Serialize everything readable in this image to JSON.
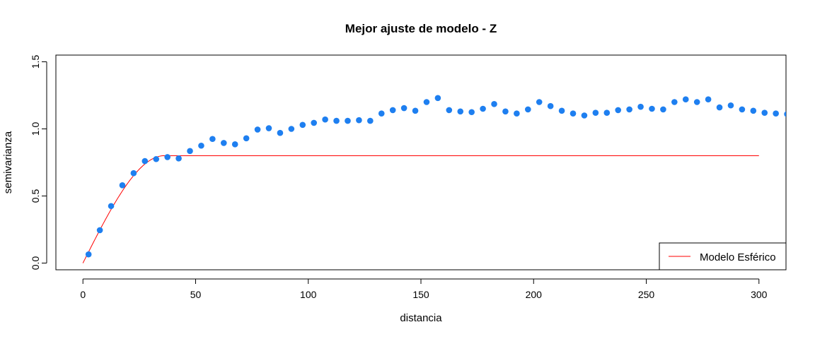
{
  "chart_data": {
    "type": "scatter",
    "title": "Mejor ajuste de modelo - Z",
    "xlabel": "distancia",
    "ylabel": "semivarianza",
    "xlim": [
      -12,
      312
    ],
    "ylim": [
      -0.05,
      1.55
    ],
    "x_ticks": [
      0,
      50,
      100,
      150,
      200,
      250,
      300
    ],
    "y_ticks": [
      0.0,
      0.5,
      1.0,
      1.5
    ],
    "x_tick_labels": [
      "0",
      "50",
      "100",
      "150",
      "200",
      "250",
      "300"
    ],
    "y_tick_labels": [
      "0.0",
      "0.5",
      "1.0",
      "1.5"
    ],
    "grid": false,
    "point_color": "#1e7ff0",
    "line_color": "#ff0000",
    "legend_position": "bottom-right",
    "series": [
      {
        "type": "scatter",
        "x": [
          2.5,
          7.5,
          12.5,
          17.5,
          22.5,
          27.5,
          32.5,
          37.5,
          42.5,
          47.5,
          52.5,
          57.5,
          62.5,
          67.5,
          72.5,
          77.5,
          82.5,
          87.5,
          92.5,
          97.5,
          102.5,
          107.5,
          112.5,
          117.5,
          122.5,
          127.5,
          132.5,
          137.5,
          142.5,
          147.5,
          152.5,
          157.5,
          162.5,
          167.5,
          172.5,
          177.5,
          182.5,
          187.5,
          192.5,
          197.5,
          202.5,
          207.5,
          212.5,
          217.5,
          222.5,
          227.5,
          232.5,
          237.5,
          242.5,
          247.5,
          252.5,
          257.5,
          262.5,
          267.5,
          272.5,
          277.5,
          282.5,
          287.5,
          292.5,
          297.5,
          302.5,
          307.5,
          312.5
        ],
        "y": [
          0.065,
          0.245,
          0.425,
          0.58,
          0.67,
          0.76,
          0.775,
          0.79,
          0.78,
          0.835,
          0.875,
          0.925,
          0.895,
          0.885,
          0.93,
          0.995,
          1.005,
          0.97,
          1.0,
          1.03,
          1.045,
          1.07,
          1.06,
          1.06,
          1.065,
          1.06,
          1.115,
          1.14,
          1.155,
          1.135,
          1.2,
          1.23,
          1.14,
          1.13,
          1.125,
          1.15,
          1.185,
          1.13,
          1.115,
          1.145,
          1.2,
          1.17,
          1.135,
          1.115,
          1.1,
          1.12,
          1.12,
          1.14,
          1.145,
          1.165,
          1.15,
          1.145,
          1.2,
          1.22,
          1.2,
          1.22,
          1.16,
          1.175,
          1.145,
          1.135,
          1.12,
          1.115,
          1.11
        ]
      },
      {
        "type": "line",
        "name": "Modelo Esférico",
        "model": "spherical",
        "nugget": 0,
        "sill": 0.8,
        "range": 36,
        "x_range": [
          0,
          300
        ]
      }
    ]
  }
}
